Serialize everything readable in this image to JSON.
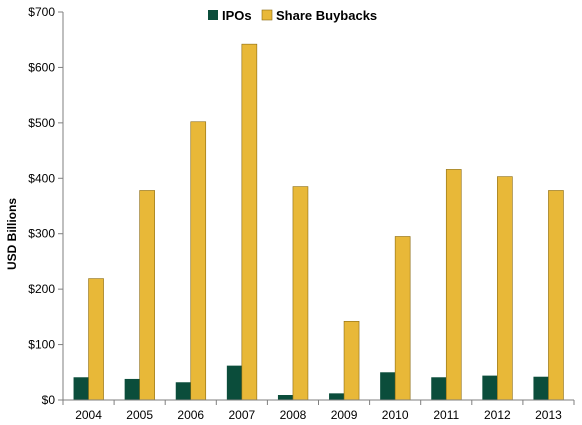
{
  "chart_data": {
    "type": "bar",
    "categories": [
      "2004",
      "2005",
      "2006",
      "2007",
      "2008",
      "2009",
      "2010",
      "2011",
      "2012",
      "2013"
    ],
    "series": [
      {
        "name": "IPOs",
        "color": "#0b4d3b",
        "values": [
          41,
          38,
          32,
          62,
          9,
          12,
          50,
          41,
          44,
          42
        ]
      },
      {
        "name": "Share Buybacks",
        "color": "#e8b838",
        "values": [
          219,
          378,
          502,
          642,
          385,
          142,
          295,
          416,
          403,
          378
        ]
      }
    ],
    "title": "",
    "xlabel": "",
    "ylabel": "USD Billions",
    "ylim": [
      0,
      700
    ],
    "yticks": [
      0,
      100,
      200,
      300,
      400,
      500,
      600,
      700
    ],
    "ytick_labels": [
      "$0",
      "$100",
      "$200",
      "$300",
      "$400",
      "$500",
      "$600",
      "$700"
    ],
    "grid": false,
    "legend_position": "top-center"
  }
}
